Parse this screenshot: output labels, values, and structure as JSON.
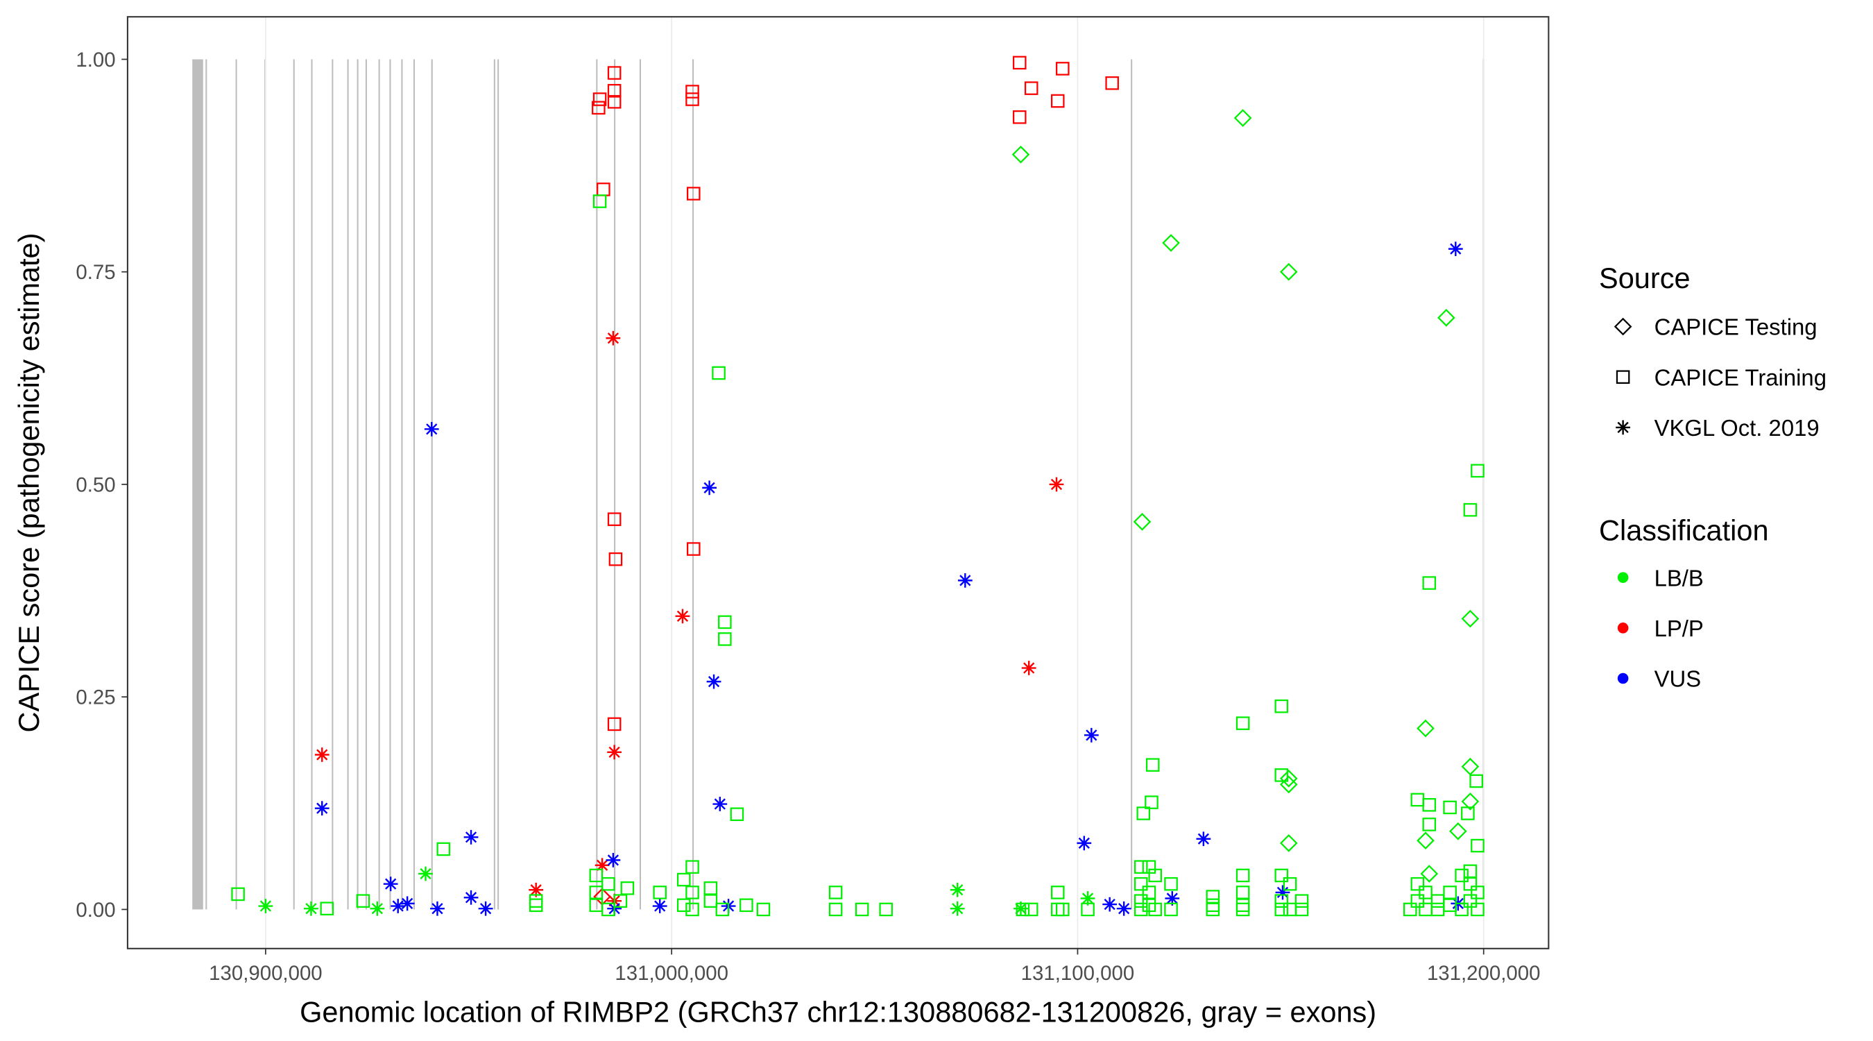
{
  "chart_data": {
    "type": "scatter",
    "xlabel": "Genomic location of RIMBP2 (GRCh37 chr12:130880682-131200826, gray = exons)",
    "ylabel": "CAPICE score (pathogenicity estimate)",
    "xlim": [
      130866000,
      131216000
    ],
    "ylim": [
      -0.046,
      1.05
    ],
    "x_ticks": [
      130900000,
      131000000,
      131100000,
      131200000
    ],
    "x_tick_labels": [
      "130,900,000",
      "131,000,000",
      "131,100,000",
      "131,200,000"
    ],
    "y_ticks": [
      0,
      0.25,
      0.5,
      0.75,
      1.0
    ],
    "y_tick_labels": [
      "0.00",
      "0.25",
      "0.50",
      "0.75",
      "1.00"
    ],
    "exons": [
      [
        130881940,
        130884600
      ],
      [
        130885200,
        130885300
      ],
      [
        130892600,
        130892700
      ],
      [
        130899700,
        130899800
      ],
      [
        130906800,
        130906900
      ],
      [
        130911200,
        130911300
      ],
      [
        130916300,
        130916400
      ],
      [
        130920100,
        130920200
      ],
      [
        130922500,
        130922600
      ],
      [
        130924600,
        130924700
      ],
      [
        130927800,
        130927900
      ],
      [
        130930500,
        130930600
      ],
      [
        130933400,
        130933500
      ],
      [
        130936400,
        130936500
      ],
      [
        130940800,
        130940900
      ],
      [
        130956200,
        130956300
      ],
      [
        130957100,
        130957200
      ],
      [
        130981400,
        130981500
      ],
      [
        130985800,
        130985900
      ],
      [
        130992100,
        130992200
      ],
      [
        131005100,
        131005200
      ],
      [
        131113100,
        131113200
      ],
      [
        131199800,
        131199900
      ]
    ],
    "legend": {
      "source_title": "Source",
      "sources": [
        {
          "name": "CAPICE Testing",
          "shape": "diamond"
        },
        {
          "name": "CAPICE Training",
          "shape": "square"
        },
        {
          "name": "VKGL Oct. 2019",
          "shape": "asterisk"
        }
      ],
      "class_title": "Classification",
      "classes": [
        {
          "name": "LB/B",
          "color": "#00ee00"
        },
        {
          "name": "LP/P",
          "color": "#ff0000"
        },
        {
          "name": "VUS",
          "color": "#0000ff"
        }
      ],
      "placement": "right"
    },
    "series": [
      {
        "source": "CAPICE Training",
        "classification": "LP/P",
        "points": [
          [
            130982300,
            0.953
          ],
          [
            130982000,
            0.943
          ],
          [
            130985900,
            0.984
          ],
          [
            130985900,
            0.963
          ],
          [
            130985900,
            0.95
          ],
          [
            130983200,
            0.847
          ],
          [
            131005100,
            0.962
          ],
          [
            131005100,
            0.953
          ],
          [
            131005400,
            0.842
          ],
          [
            130985900,
            0.459
          ],
          [
            130986200,
            0.412
          ],
          [
            131005400,
            0.424
          ],
          [
            130985900,
            0.218
          ],
          [
            131085700,
            0.996
          ],
          [
            131096300,
            0.989
          ],
          [
            131088600,
            0.966
          ],
          [
            131108500,
            0.972
          ],
          [
            131085700,
            0.932
          ],
          [
            131095100,
            0.951
          ]
        ]
      },
      {
        "source": "VKGL Oct. 2019",
        "classification": "LP/P",
        "points": [
          [
            130913900,
            0.182
          ],
          [
            130985600,
            0.672
          ],
          [
            131002700,
            0.345
          ],
          [
            130985900,
            0.185
          ],
          [
            130966600,
            0.023
          ],
          [
            130982900,
            0.052
          ],
          [
            130985900,
            0.01
          ],
          [
            131094800,
            0.5
          ],
          [
            131088000,
            0.284
          ]
        ]
      },
      {
        "source": "CAPICE Testing",
        "classification": "LP/P",
        "points": [
          [
            130982900,
            0.015
          ]
        ]
      },
      {
        "source": "VKGL Oct. 2019",
        "classification": "VUS",
        "points": [
          [
            130940900,
            0.565
          ],
          [
            130913900,
            0.119
          ],
          [
            130950600,
            0.085
          ],
          [
            130930800,
            0.03
          ],
          [
            130932600,
            0.004
          ],
          [
            130934900,
            0.007
          ],
          [
            130942300,
            0.001
          ],
          [
            130950600,
            0.014
          ],
          [
            130954200,
            0.001
          ],
          [
            130985600,
            0.058
          ],
          [
            130985900,
            0.001
          ],
          [
            130997100,
            0.004
          ],
          [
            131009300,
            0.496
          ],
          [
            131010400,
            0.268
          ],
          [
            131011900,
            0.124
          ],
          [
            131014000,
            0.004
          ],
          [
            131072300,
            0.387
          ],
          [
            131103400,
            0.205
          ],
          [
            131101600,
            0.078
          ],
          [
            131107900,
            0.006
          ],
          [
            131111400,
            0.001
          ],
          [
            131123300,
            0.013
          ],
          [
            131131000,
            0.083
          ],
          [
            131150500,
            0.02
          ],
          [
            131193100,
            0.777
          ],
          [
            131193700,
            0.007
          ]
        ]
      },
      {
        "source": "CAPICE Testing",
        "classification": "LB/B",
        "points": [
          [
            131086000,
            0.888
          ],
          [
            131140700,
            0.931
          ],
          [
            131123000,
            0.784
          ],
          [
            131152000,
            0.75
          ],
          [
            131190800,
            0.696
          ],
          [
            131115900,
            0.456
          ],
          [
            131196700,
            0.342
          ],
          [
            131185700,
            0.213
          ],
          [
            131152000,
            0.154
          ],
          [
            131152000,
            0.147
          ],
          [
            131196700,
            0.168
          ],
          [
            131196700,
            0.127
          ],
          [
            131193700,
            0.092
          ],
          [
            131185700,
            0.081
          ],
          [
            131152000,
            0.078
          ],
          [
            131186600,
            0.042
          ]
        ]
      },
      {
        "source": "CAPICE Training",
        "classification": "LB/B",
        "points": [
          [
            130982300,
            0.833
          ],
          [
            131011600,
            0.631
          ],
          [
            131198500,
            0.516
          ],
          [
            131196700,
            0.47
          ],
          [
            131186600,
            0.384
          ],
          [
            131013100,
            0.338
          ],
          [
            131013100,
            0.318
          ],
          [
            131150200,
            0.239
          ],
          [
            131140700,
            0.219
          ],
          [
            131118500,
            0.17
          ],
          [
            131198200,
            0.151
          ],
          [
            131150200,
            0.158
          ],
          [
            131118200,
            0.126
          ],
          [
            131116200,
            0.113
          ],
          [
            131016100,
            0.112
          ],
          [
            130943800,
            0.071
          ],
          [
            131183700,
            0.129
          ],
          [
            131186600,
            0.123
          ],
          [
            131191700,
            0.12
          ],
          [
            131196100,
            0.113
          ],
          [
            131198500,
            0.075
          ],
          [
            131186600,
            0.1
          ],
          [
            130893200,
            0.018
          ],
          [
            130915100,
            0.001
          ],
          [
            130924000,
            0.01
          ],
          [
            130966600,
            0.005
          ],
          [
            130966600,
            0.01
          ],
          [
            130981400,
            0.04
          ],
          [
            130981400,
            0.02
          ],
          [
            130981400,
            0.005
          ],
          [
            130984400,
            0.03
          ],
          [
            130984400,
            0.0
          ],
          [
            130987400,
            0.01
          ],
          [
            130989100,
            0.025
          ],
          [
            130997100,
            0.02
          ],
          [
            131003000,
            0.035
          ],
          [
            131003000,
            0.005
          ],
          [
            131005100,
            0.05
          ],
          [
            131005100,
            0.02
          ],
          [
            131005100,
            0.0
          ],
          [
            131009600,
            0.025
          ],
          [
            131009600,
            0.01
          ],
          [
            131012500,
            0.0
          ],
          [
            131018400,
            0.005
          ],
          [
            131022600,
            0.0
          ],
          [
            131040400,
            0.02
          ],
          [
            131040400,
            0.0
          ],
          [
            131046900,
            0.0
          ],
          [
            131052800,
            0.0
          ],
          [
            131086500,
            0.0
          ],
          [
            131088600,
            0.0
          ],
          [
            131095100,
            0.02
          ],
          [
            131095100,
            0.0
          ],
          [
            131096300,
            0.0
          ],
          [
            131102500,
            0.0
          ],
          [
            131115600,
            0.05
          ],
          [
            131115600,
            0.03
          ],
          [
            131115600,
            0.01
          ],
          [
            131115600,
            0.0
          ],
          [
            131117600,
            0.05
          ],
          [
            131117600,
            0.02
          ],
          [
            131117600,
            0.005
          ],
          [
            131119100,
            0.04
          ],
          [
            131119100,
            0.0
          ],
          [
            131123000,
            0.03
          ],
          [
            131123000,
            0.0
          ],
          [
            131133300,
            0.015
          ],
          [
            131133300,
            0.005
          ],
          [
            131133300,
            0.0
          ],
          [
            131140700,
            0.04
          ],
          [
            131140700,
            0.02
          ],
          [
            131140700,
            0.005
          ],
          [
            131140700,
            0.0
          ],
          [
            131150200,
            0.04
          ],
          [
            131150200,
            0.01
          ],
          [
            131150200,
            0.0
          ],
          [
            131152300,
            0.03
          ],
          [
            131152300,
            0.0
          ],
          [
            131155200,
            0.01
          ],
          [
            131155200,
            0.0
          ],
          [
            131181900,
            0.0
          ],
          [
            131183700,
            0.03
          ],
          [
            131183700,
            0.01
          ],
          [
            131185700,
            0.02
          ],
          [
            131185700,
            0.0
          ],
          [
            131188700,
            0.01
          ],
          [
            131188700,
            0.0
          ],
          [
            131191700,
            0.02
          ],
          [
            131191700,
            0.005
          ],
          [
            131194600,
            0.04
          ],
          [
            131194600,
            0.0
          ],
          [
            131196700,
            0.045
          ],
          [
            131196700,
            0.03
          ],
          [
            131196700,
            0.01
          ],
          [
            131198500,
            0.02
          ],
          [
            131198500,
            0.0
          ]
        ]
      },
      {
        "source": "VKGL Oct. 2019",
        "classification": "LB/B",
        "points": [
          [
            130900000,
            0.004
          ],
          [
            130911200,
            0.001
          ],
          [
            130927500,
            0.001
          ],
          [
            130939400,
            0.042
          ],
          [
            131070400,
            0.023
          ],
          [
            131070400,
            0.001
          ],
          [
            131086000,
            0.001
          ],
          [
            131102500,
            0.013
          ]
        ]
      }
    ]
  }
}
